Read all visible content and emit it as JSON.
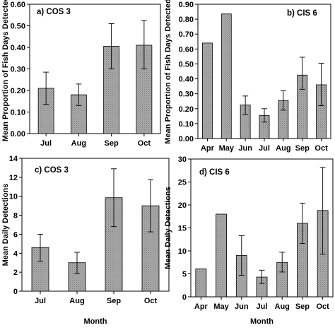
{
  "chart_data": [
    {
      "type": "bar",
      "panel_label": "a) COS 3",
      "ylabel": "Mean Proportion of Fish Days Detected",
      "xlabel": "",
      "ylim": [
        0,
        0.6
      ],
      "yticks": [
        "0.00",
        "0.10",
        "0.20",
        "0.30",
        "0.40",
        "0.50",
        "0.60"
      ],
      "categories": [
        "Jul",
        "Aug",
        "Sep",
        "Oct"
      ],
      "values": [
        0.21,
        0.18,
        0.405,
        0.41
      ],
      "error_low": [
        0.135,
        0.13,
        0.3,
        0.3
      ],
      "error_high": [
        0.285,
        0.23,
        0.51,
        0.525
      ],
      "bar_color": "#9e9e9e",
      "grid": false
    },
    {
      "type": "bar",
      "panel_label": "b) CIS 6",
      "ylabel": "Mean Proportion of Fish Days Detected",
      "xlabel": "",
      "ylim": [
        0,
        0.9
      ],
      "yticks": [
        "0.00",
        "0.10",
        "0.20",
        "0.30",
        "0.40",
        "0.50",
        "0.60",
        "0.70",
        "0.80",
        "0.90"
      ],
      "categories": [
        "Apr",
        "May",
        "Jun",
        "Jul",
        "Aug",
        "Sep",
        "Oct"
      ],
      "values": [
        0.64,
        0.835,
        0.225,
        0.155,
        0.255,
        0.425,
        0.36
      ],
      "error_low": [
        null,
        null,
        0.16,
        0.11,
        0.19,
        0.33,
        0.22
      ],
      "error_high": [
        null,
        null,
        0.285,
        0.2,
        0.32,
        0.545,
        0.505
      ],
      "bar_color": "#9e9e9e",
      "grid": false
    },
    {
      "type": "bar",
      "panel_label": "c) COS 3",
      "ylabel": "Mean Daily Detections",
      "xlabel": "Month",
      "ylim": [
        0,
        14
      ],
      "yticks": [
        "0",
        "2",
        "4",
        "6",
        "8",
        "10",
        "12",
        "14"
      ],
      "categories": [
        "Jul",
        "Aug",
        "Sep",
        "Oct"
      ],
      "values": [
        4.6,
        3.0,
        9.85,
        9.0
      ],
      "error_low": [
        3.15,
        1.85,
        6.8,
        6.25
      ],
      "error_high": [
        6.0,
        4.1,
        12.9,
        11.75
      ],
      "bar_color": "#9e9e9e",
      "grid": false
    },
    {
      "type": "bar",
      "panel_label": "d) CIS 6",
      "ylabel": "Mean Daily Detections",
      "xlabel": "Month",
      "ylim": [
        0,
        30
      ],
      "yticks": [
        "0",
        "5",
        "10",
        "15",
        "20",
        "25",
        "30"
      ],
      "categories": [
        "Apr",
        "May",
        "Jun",
        "Jul",
        "Aug",
        "Sep",
        "Oct"
      ],
      "values": [
        6.1,
        18.0,
        9.0,
        4.3,
        7.5,
        16.0,
        18.8
      ],
      "error_low": [
        null,
        null,
        4.7,
        2.9,
        5.4,
        11.6,
        9.3
      ],
      "error_high": [
        null,
        null,
        13.3,
        5.8,
        9.7,
        20.4,
        28.2
      ],
      "bar_color": "#9e9e9e",
      "grid": false
    }
  ]
}
